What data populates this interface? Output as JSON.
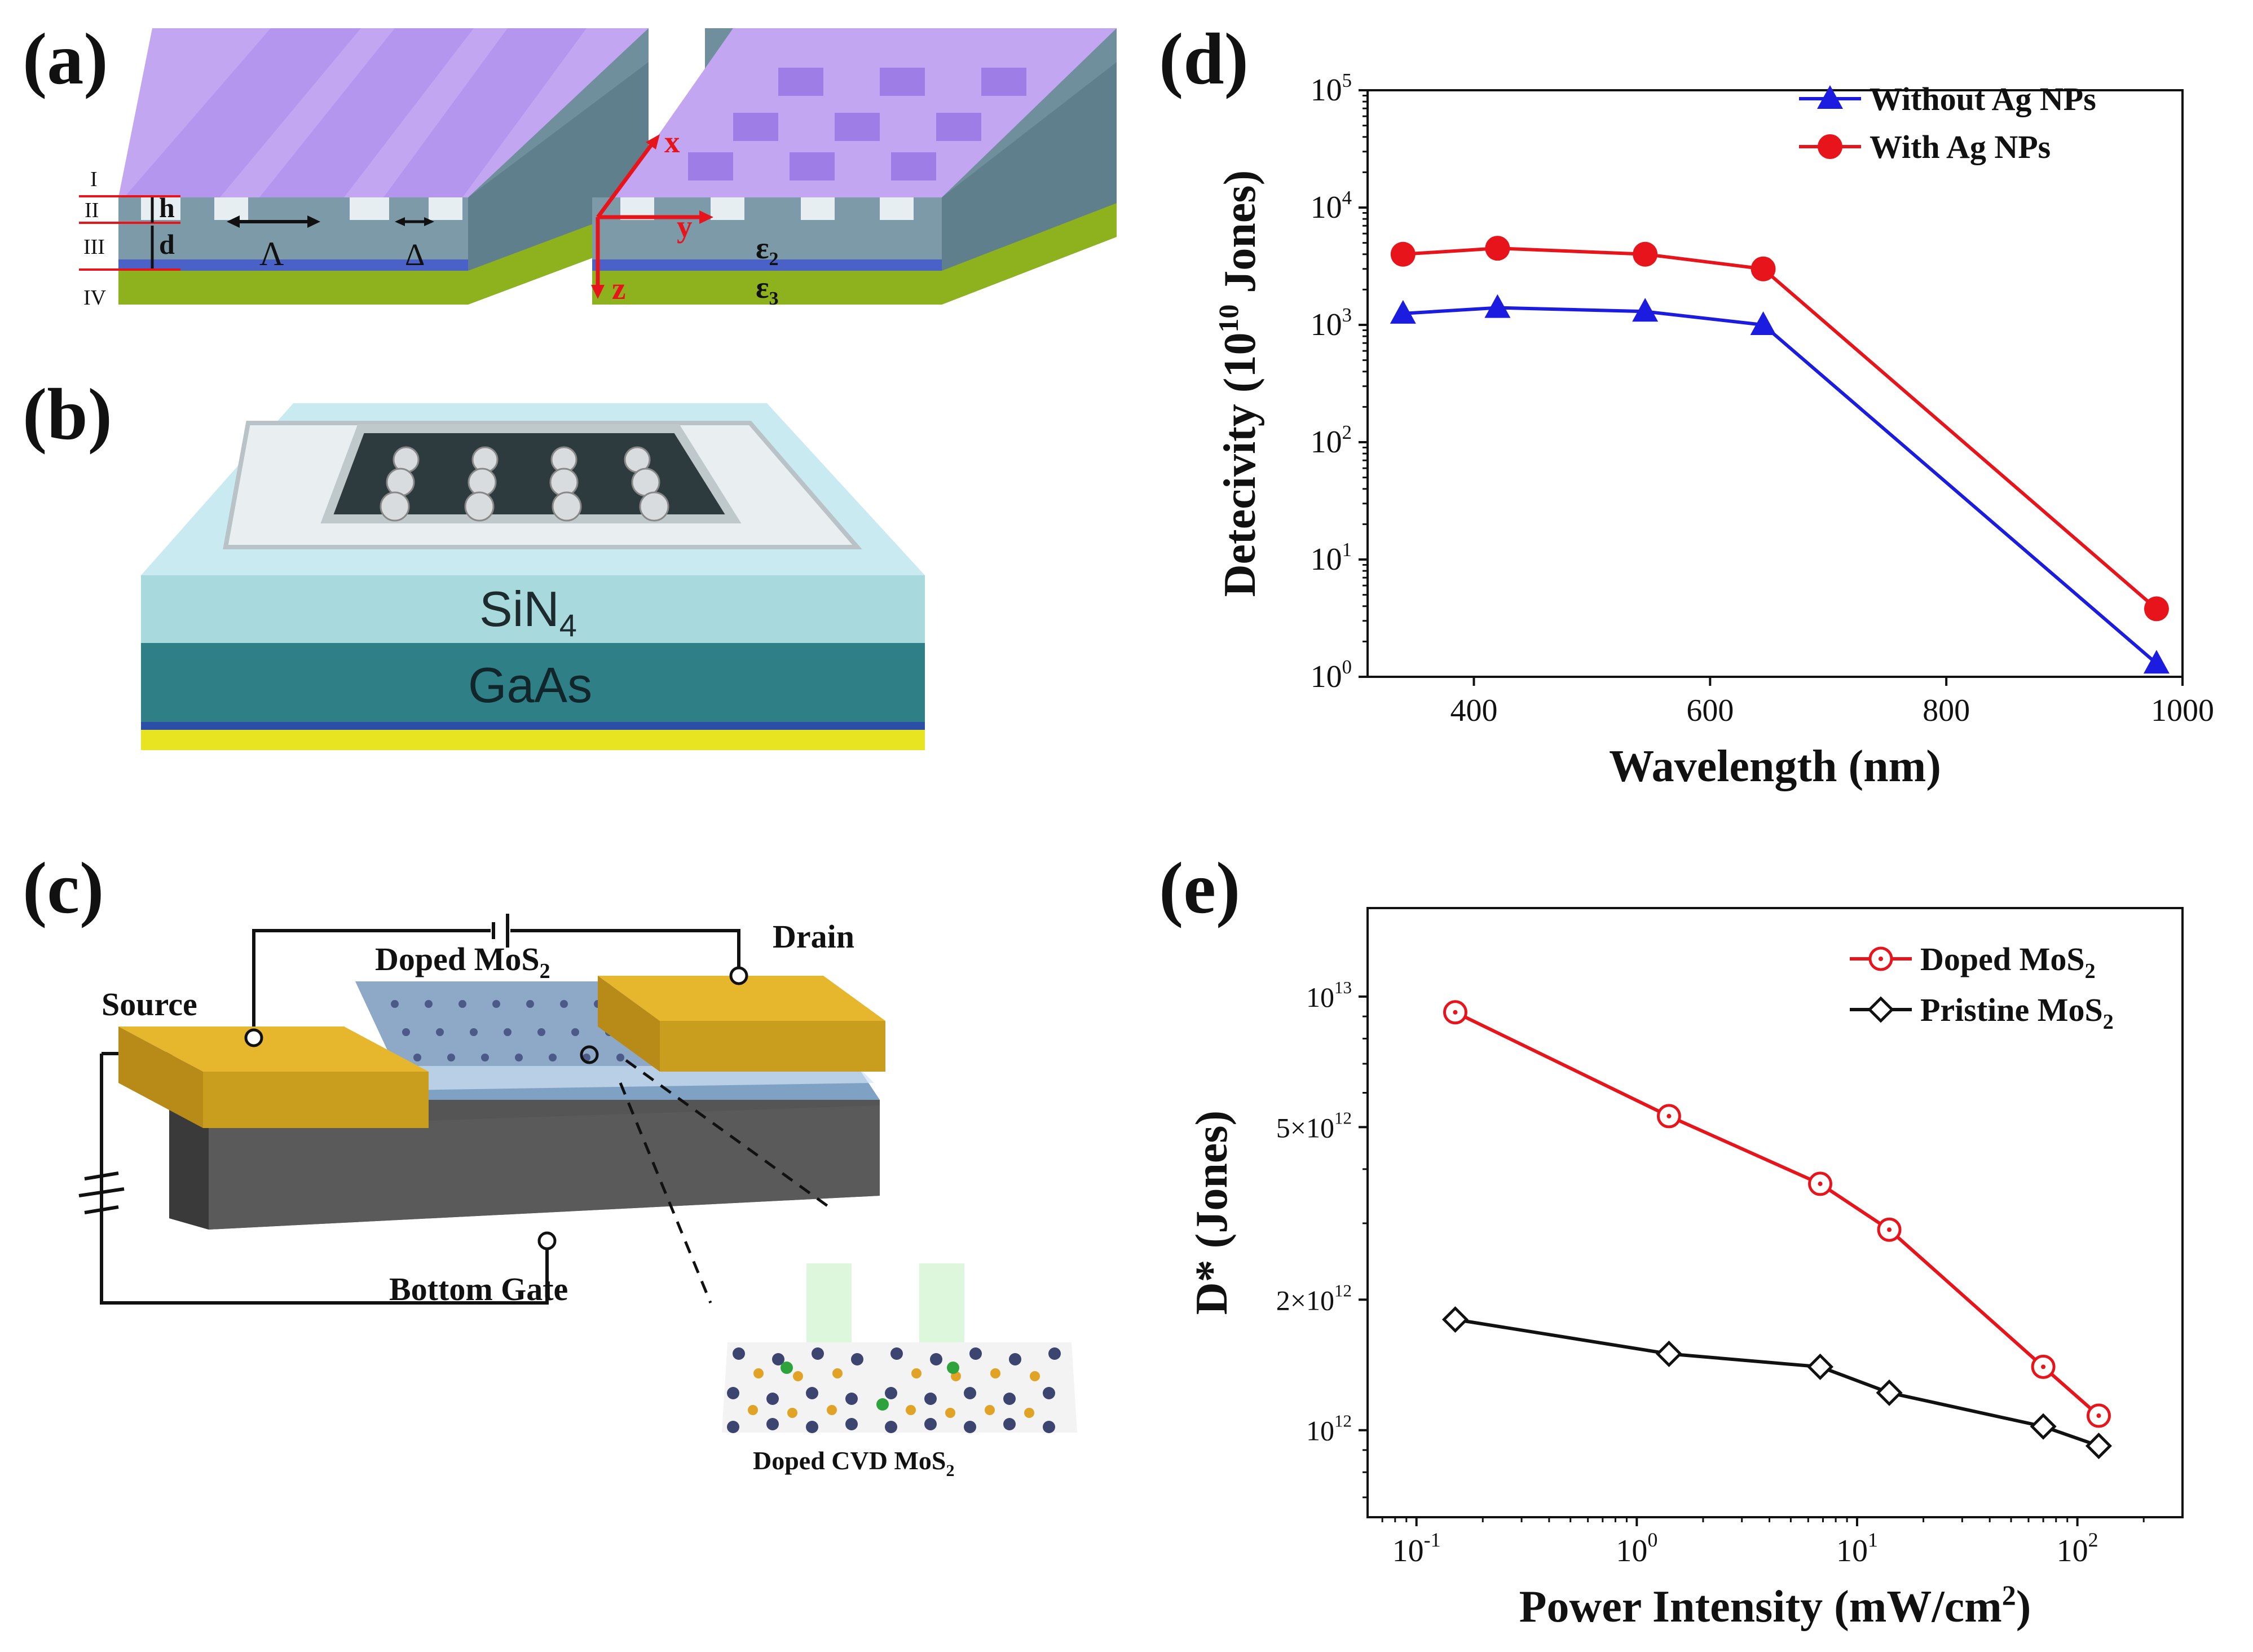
{
  "panels": {
    "a": {
      "label": "(a)",
      "layer_labels": [
        "I",
        "II",
        "III",
        "IV"
      ],
      "dims": {
        "h": "h",
        "d": "d",
        "period": "Λ",
        "width": "Δ"
      },
      "axes": {
        "x": "x",
        "y": "y",
        "z": "z"
      },
      "eps2": "ε",
      "eps2_sub": "2",
      "eps3": "ε",
      "eps3_sub": "3"
    },
    "b": {
      "label": "(b)",
      "layers": {
        "top": "SiN",
        "top_sub": "4",
        "mid": "GaAs"
      }
    },
    "c": {
      "label": "(c)",
      "source": "Source",
      "drain": "Drain",
      "channel": "Doped MoS",
      "channel_sub": "2",
      "gate": "Bottom Gate",
      "inset": "Doped CVD MoS",
      "inset_sub": "2"
    },
    "d": {
      "label": "(d)"
    },
    "e": {
      "label": "(e)"
    }
  },
  "colors": {
    "red": "#e8141b",
    "blue": "#1c1ce0",
    "black": "#111111",
    "purple": "#b89cf0",
    "gold": "#d9a826",
    "slate": "#7f99a6"
  },
  "chart_data": [
    {
      "id": "d",
      "type": "line",
      "xscale": "linear",
      "yscale": "log",
      "xlabel": "Wavelength (nm)",
      "ylabel": "Detecivity (10^10 Jones)",
      "ylabel_parts": {
        "pre": "Detecivity (10",
        "sup": "10",
        "post": " Jones)"
      },
      "xlim": [
        310,
        1000
      ],
      "ylim": [
        1,
        100000
      ],
      "xticks": [
        400,
        600,
        800,
        1000
      ],
      "xtick_labels": [
        "400",
        "600",
        "800",
        "1000"
      ],
      "yticks": [
        1,
        10,
        100,
        1000,
        10000,
        100000
      ],
      "ytick_labels": [
        {
          "base": "10",
          "exp": "0"
        },
        {
          "base": "10",
          "exp": "1"
        },
        {
          "base": "10",
          "exp": "2"
        },
        {
          "base": "10",
          "exp": "3"
        },
        {
          "base": "10",
          "exp": "4"
        },
        {
          "base": "10",
          "exp": "5"
        }
      ],
      "legend_position": "top-right",
      "series": [
        {
          "name": "Without Ag NPs",
          "color": "#1c1ce0",
          "marker": "triangle",
          "x": [
            340,
            420,
            545,
            645,
            978
          ],
          "y": [
            1250,
            1400,
            1300,
            1000,
            1.3
          ]
        },
        {
          "name": "With Ag NPs",
          "color": "#e8141b",
          "marker": "circle",
          "x": [
            340,
            420,
            545,
            645,
            978
          ],
          "y": [
            4000,
            4500,
            4000,
            3000,
            3.8
          ]
        }
      ]
    },
    {
      "id": "e",
      "type": "line",
      "xscale": "log",
      "yscale": "log",
      "xlabel": "Power Intensity (mW/cm²)",
      "xlabel_parts": {
        "pre": "Power Intensity (mW/cm",
        "sup": "2",
        "post": ")"
      },
      "ylabel": "D* (Jones)",
      "xlim": [
        0.06,
        300
      ],
      "ylim": [
        630000000000.0,
        16000000000000.0
      ],
      "xticks": [
        0.1,
        1,
        10,
        100
      ],
      "xtick_labels": [
        {
          "base": "10",
          "exp": "-1"
        },
        {
          "base": "10",
          "exp": "0"
        },
        {
          "base": "10",
          "exp": "1"
        },
        {
          "base": "10",
          "exp": "2"
        }
      ],
      "yticks": [
        1000000000000.0,
        2000000000000.0,
        5000000000000.0,
        10000000000000.0
      ],
      "ytick_labels": [
        {
          "base": "10",
          "exp": "12"
        },
        {
          "base": "2×10",
          "exp": "12"
        },
        {
          "base": "5×10",
          "exp": "12"
        },
        {
          "base": "10",
          "exp": "13"
        }
      ],
      "legend_position": "top-right",
      "series": [
        {
          "name": "Doped MoS₂",
          "name_base": "Doped MoS",
          "name_sub": "2",
          "color": "#e8141b",
          "marker": "circle-open",
          "x": [
            0.15,
            1.4,
            6.8,
            14,
            70,
            125
          ],
          "y": [
            9200000000000.0,
            5300000000000.0,
            3700000000000.0,
            2900000000000.0,
            1400000000000.0,
            1080000000000.0
          ]
        },
        {
          "name": "Pristine MoS₂",
          "name_base": "Pristine MoS",
          "name_sub": "2",
          "color": "#111111",
          "marker": "diamond-open",
          "x": [
            0.15,
            1.4,
            6.8,
            14,
            70,
            125
          ],
          "y": [
            1800000000000.0,
            1500000000000.0,
            1400000000000.0,
            1220000000000.0,
            1020000000000.0,
            920000000000.0
          ]
        }
      ]
    }
  ]
}
